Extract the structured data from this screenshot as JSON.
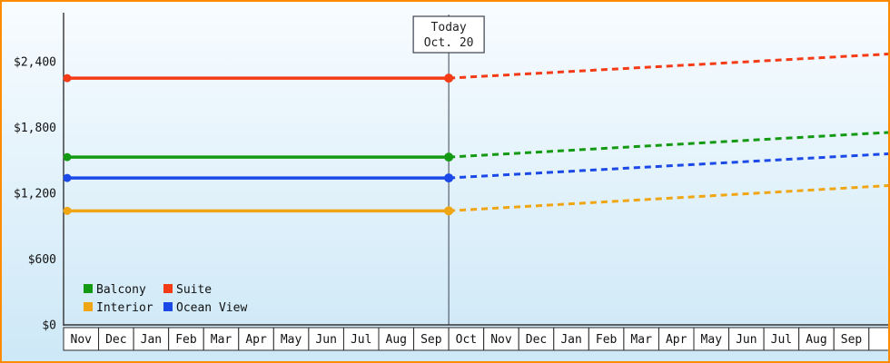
{
  "colors": {
    "frame_border": "#ff8c00",
    "bg_top": "#f8fcff",
    "bg_bottom": "#cde8f7",
    "axis": "#333333",
    "today_line": "#3c4150",
    "cell_border": "#2a2a2a",
    "text": "#111111"
  },
  "chart_data": {
    "type": "line",
    "today_box": {
      "line1": "Today",
      "line2": "Oct. 20"
    },
    "today_index": 11,
    "x_categories": [
      "Nov",
      "Dec",
      "Jan",
      "Feb",
      "Mar",
      "Apr",
      "May",
      "Jun",
      "Jul",
      "Aug",
      "Sep",
      "Oct",
      "Nov",
      "Dec",
      "Jan",
      "Feb",
      "Mar",
      "Apr",
      "May",
      "Jun",
      "Jul",
      "Aug",
      "Sep"
    ],
    "y_axis": {
      "ticks": [
        0,
        600,
        1200,
        1800,
        2400
      ],
      "labels": [
        "$0",
        "$600",
        "$1,200",
        "$1,800",
        "$2,400"
      ]
    },
    "ylim": [
      0,
      2850
    ],
    "grid": "off",
    "legend_position": "bottom-left",
    "series": [
      {
        "name": "Suite",
        "color": "#f53a16",
        "current_price": 2250,
        "forecast_price": 2470
      },
      {
        "name": "Balcony",
        "color": "#149a12",
        "current_price": 1530,
        "forecast_price": 1755
      },
      {
        "name": "Ocean View",
        "color": "#1b49e8",
        "current_price": 1340,
        "forecast_price": 1560
      },
      {
        "name": "Interior",
        "color": "#f0a513",
        "current_price": 1040,
        "forecast_price": 1270
      }
    ],
    "legend": {
      "rows": [
        [
          "Balcony",
          "Suite"
        ],
        [
          "Interior",
          "Ocean View"
        ]
      ]
    }
  }
}
